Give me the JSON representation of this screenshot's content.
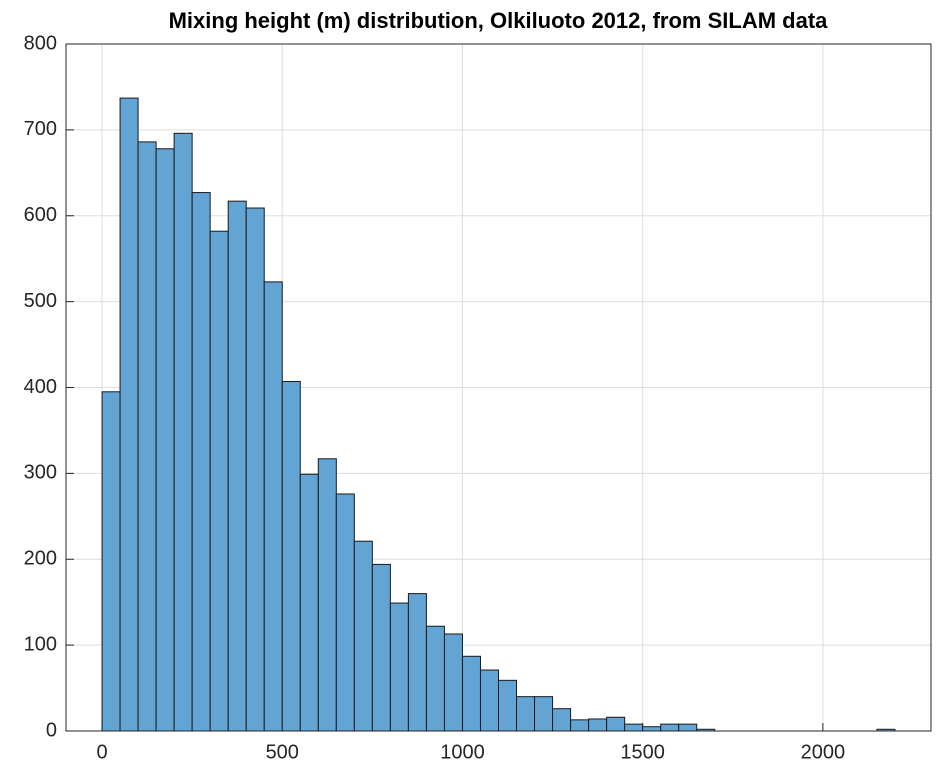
{
  "chart_data": {
    "type": "histogram",
    "title": "Mixing height (m) distribution, Olkiluoto 2012, from SILAM data",
    "bins": [
      0,
      50,
      100,
      150,
      200,
      250,
      300,
      350,
      400,
      450,
      500,
      550,
      600,
      650,
      700,
      750,
      800,
      850,
      900,
      950,
      1000,
      1050,
      1100,
      1150,
      1200,
      1250,
      1300,
      1350,
      1400,
      1450,
      1500,
      1550,
      1600,
      1650,
      1700,
      1750,
      1800,
      1850,
      1900,
      1950,
      2000,
      2050,
      2100,
      2150,
      2200
    ],
    "values": [
      395,
      737,
      686,
      678,
      696,
      627,
      582,
      617,
      609,
      523,
      407,
      299,
      317,
      276,
      221,
      194,
      149,
      160,
      122,
      113,
      87,
      71,
      59,
      40,
      40,
      26,
      13,
      14,
      16,
      8,
      5,
      8,
      8,
      2,
      0,
      0,
      0,
      0,
      0,
      0,
      0,
      0,
      0,
      2
    ],
    "color": "#62a4d4",
    "xlim": [
      -100,
      2300
    ],
    "xticks": [
      0,
      500,
      1000,
      1500,
      2000
    ],
    "ylim": [
      0,
      800
    ],
    "yticks": [
      0,
      100,
      200,
      300,
      400,
      500,
      600,
      700,
      800
    ],
    "grid": true
  }
}
